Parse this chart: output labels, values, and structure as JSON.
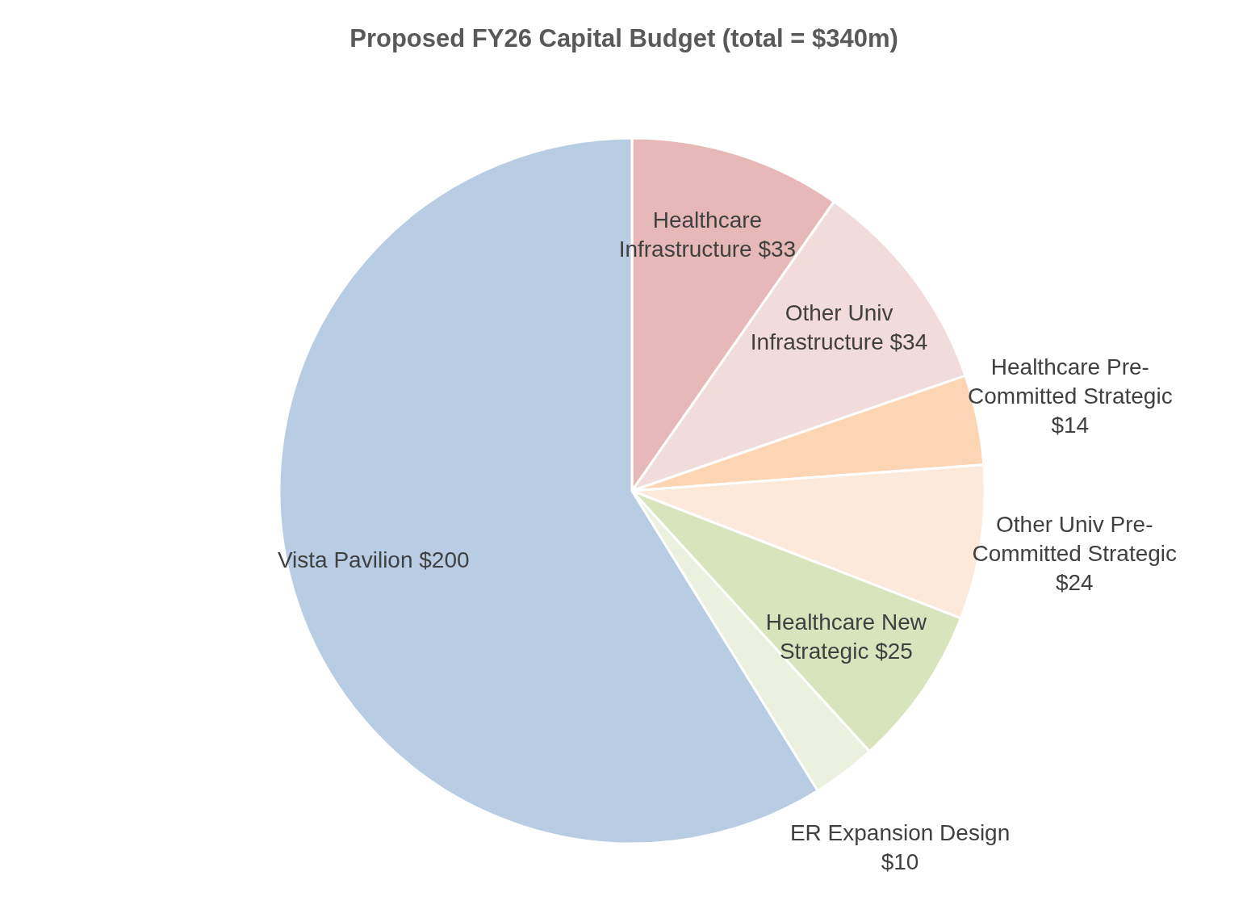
{
  "chart_data": {
    "type": "pie",
    "title": "Proposed FY26 Capital Budget (total = $340m)",
    "categories": [
      "Healthcare Infrastructure",
      "Other Univ Infrastructure",
      "Healthcare Pre-Committed Strategic",
      "Other Univ Pre-Committed Strategic",
      "Healthcare New Strategic",
      "ER Expansion Design",
      "Vista Pavilion"
    ],
    "values": [
      33,
      34,
      14,
      24,
      25,
      10,
      200
    ],
    "value_labels": [
      "$33",
      "$34",
      "$14",
      "$24",
      "$25",
      "$10",
      "$200"
    ],
    "colors": [
      "#e6b8b7",
      "#f2dcdb",
      "#fcd5b4",
      "#fde9d9",
      "#d8e4bc",
      "#ebf1de",
      "#b8cce4"
    ]
  }
}
